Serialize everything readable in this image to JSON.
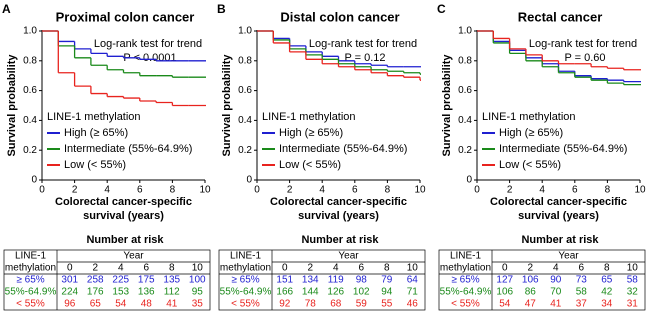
{
  "chart_data": [
    {
      "type": "line",
      "step": true,
      "panel": "A",
      "title": "Proximal colon cancer",
      "annotations": [
        "Log-rank test for trend",
        "P < 0.0001"
      ],
      "ylabel": "Survival probability",
      "xlabel": [
        "Colorectal cancer-specific",
        "survival (years)"
      ],
      "legend_title": "LINE-1 methylation",
      "xlim": [
        0,
        10
      ],
      "xticks": [
        0,
        2,
        4,
        6,
        8,
        10
      ],
      "ylim": [
        0,
        1
      ],
      "yticks": [
        0,
        0.2,
        0.4,
        0.6,
        0.8,
        {
          "value": 1,
          "label": "1.0"
        }
      ],
      "x": [
        0,
        1,
        2,
        3,
        4,
        5,
        6,
        7,
        8,
        9,
        10
      ],
      "series": [
        {
          "name": "High (≥ 65%)",
          "color": "#1f1fd0",
          "values": [
            1,
            0.93,
            0.88,
            0.85,
            0.83,
            0.82,
            0.81,
            0.8,
            0.8,
            0.8,
            0.8
          ]
        },
        {
          "name": "Intermediate (55%-64.9%)",
          "color": "#1a8a1a",
          "values": [
            1,
            0.9,
            0.82,
            0.77,
            0.74,
            0.72,
            0.7,
            0.7,
            0.69,
            0.69,
            0.69
          ]
        },
        {
          "name": "Low (< 55%)",
          "color": "#e8231e",
          "values": [
            1,
            0.72,
            0.63,
            0.58,
            0.56,
            0.55,
            0.53,
            0.52,
            0.5,
            0.5,
            0.5
          ]
        }
      ],
      "risk_table": {
        "title": "Number at risk",
        "header": [
          "LINE-1",
          "methylation"
        ],
        "year_label": "Year",
        "years": [
          0,
          2,
          4,
          6,
          8,
          10
        ],
        "rows": [
          {
            "label": "≥ 65%",
            "values": [
              301,
              258,
              225,
              175,
              135,
              100
            ]
          },
          {
            "label": "55%-64.9%",
            "values": [
              224,
              176,
              153,
              136,
              112,
              95
            ]
          },
          {
            "label": "< 55%",
            "values": [
              96,
              65,
              54,
              48,
              41,
              35
            ]
          }
        ]
      }
    },
    {
      "type": "line",
      "step": true,
      "panel": "B",
      "title": "Distal colon cancer",
      "annotations": [
        "Log-rank test for trend",
        "P = 0.12"
      ],
      "ylabel": "Survival probability",
      "xlabel": [
        "Colorectal cancer-specific",
        "survival (years)"
      ],
      "legend_title": "LINE-1 methylation",
      "xlim": [
        0,
        10
      ],
      "xticks": [
        0,
        2,
        4,
        6,
        8,
        10
      ],
      "ylim": [
        0,
        1
      ],
      "yticks": [
        0,
        0.2,
        0.4,
        0.6,
        0.8,
        {
          "value": 1,
          "label": "1.0"
        }
      ],
      "x": [
        0,
        1,
        2,
        3,
        4,
        5,
        6,
        7,
        8,
        9,
        10
      ],
      "series": [
        {
          "name": "High (≥ 65%)",
          "color": "#1f1fd0",
          "values": [
            1,
            0.95,
            0.9,
            0.86,
            0.83,
            0.8,
            0.78,
            0.77,
            0.76,
            0.76,
            0.76
          ]
        },
        {
          "name": "Intermediate (55%-64.9%)",
          "color": "#1a8a1a",
          "values": [
            1,
            0.94,
            0.88,
            0.84,
            0.81,
            0.78,
            0.76,
            0.74,
            0.73,
            0.72,
            0.71
          ]
        },
        {
          "name": "Low (< 55%)",
          "color": "#e8231e",
          "values": [
            1,
            0.92,
            0.86,
            0.81,
            0.78,
            0.76,
            0.74,
            0.72,
            0.7,
            0.69,
            0.67
          ]
        }
      ],
      "risk_table": {
        "title": "Number at risk",
        "header": [
          "LINE-1",
          "methylation"
        ],
        "year_label": "Year",
        "years": [
          0,
          2,
          4,
          6,
          8,
          10
        ],
        "rows": [
          {
            "label": "≥ 65%",
            "values": [
              151,
              134,
              119,
              98,
              79,
              64
            ]
          },
          {
            "label": "55%-64.9%",
            "values": [
              166,
              144,
              126,
              102,
              94,
              71
            ]
          },
          {
            "label": "< 55%",
            "values": [
              92,
              78,
              68,
              59,
              55,
              46
            ]
          }
        ]
      }
    },
    {
      "type": "line",
      "step": true,
      "panel": "C",
      "title": "Rectal cancer",
      "annotations": [
        "Log-rank test for trend",
        "P = 0.60"
      ],
      "ylabel": "Survival probability",
      "xlabel": [
        "Colorectal cancer-specific",
        "survival (years)"
      ],
      "legend_title": "LINE-1 methylation",
      "xlim": [
        0,
        10
      ],
      "xticks": [
        0,
        2,
        4,
        6,
        8,
        10
      ],
      "ylim": [
        0,
        1
      ],
      "yticks": [
        0,
        0.2,
        0.4,
        0.6,
        0.8,
        {
          "value": 1,
          "label": "1.0"
        }
      ],
      "x": [
        0,
        1,
        2,
        3,
        4,
        5,
        6,
        7,
        8,
        9,
        10
      ],
      "series": [
        {
          "name": "High (≥ 65%)",
          "color": "#1f1fd0",
          "values": [
            1,
            0.93,
            0.87,
            0.82,
            0.78,
            0.73,
            0.7,
            0.68,
            0.67,
            0.66,
            0.66
          ]
        },
        {
          "name": "Intermediate (55%-64.9%)",
          "color": "#1a8a1a",
          "values": [
            1,
            0.92,
            0.85,
            0.8,
            0.76,
            0.72,
            0.69,
            0.67,
            0.65,
            0.64,
            0.64
          ]
        },
        {
          "name": "Low (< 55%)",
          "color": "#e8231e",
          "values": [
            1,
            0.95,
            0.88,
            0.84,
            0.8,
            0.78,
            0.78,
            0.76,
            0.75,
            0.74,
            0.74
          ]
        }
      ],
      "risk_table": {
        "title": "Number at risk",
        "header": [
          "LINE-1",
          "methylation"
        ],
        "year_label": "Year",
        "years": [
          0,
          2,
          4,
          6,
          8,
          10
        ],
        "rows": [
          {
            "label": "≥ 65%",
            "values": [
              127,
              106,
              90,
              73,
              65,
              58
            ]
          },
          {
            "label": "55%-64.9%",
            "values": [
              106,
              86,
              70,
              58,
              42,
              32
            ]
          },
          {
            "label": "< 55%",
            "values": [
              54,
              47,
              41,
              37,
              34,
              31
            ]
          }
        ]
      }
    }
  ]
}
